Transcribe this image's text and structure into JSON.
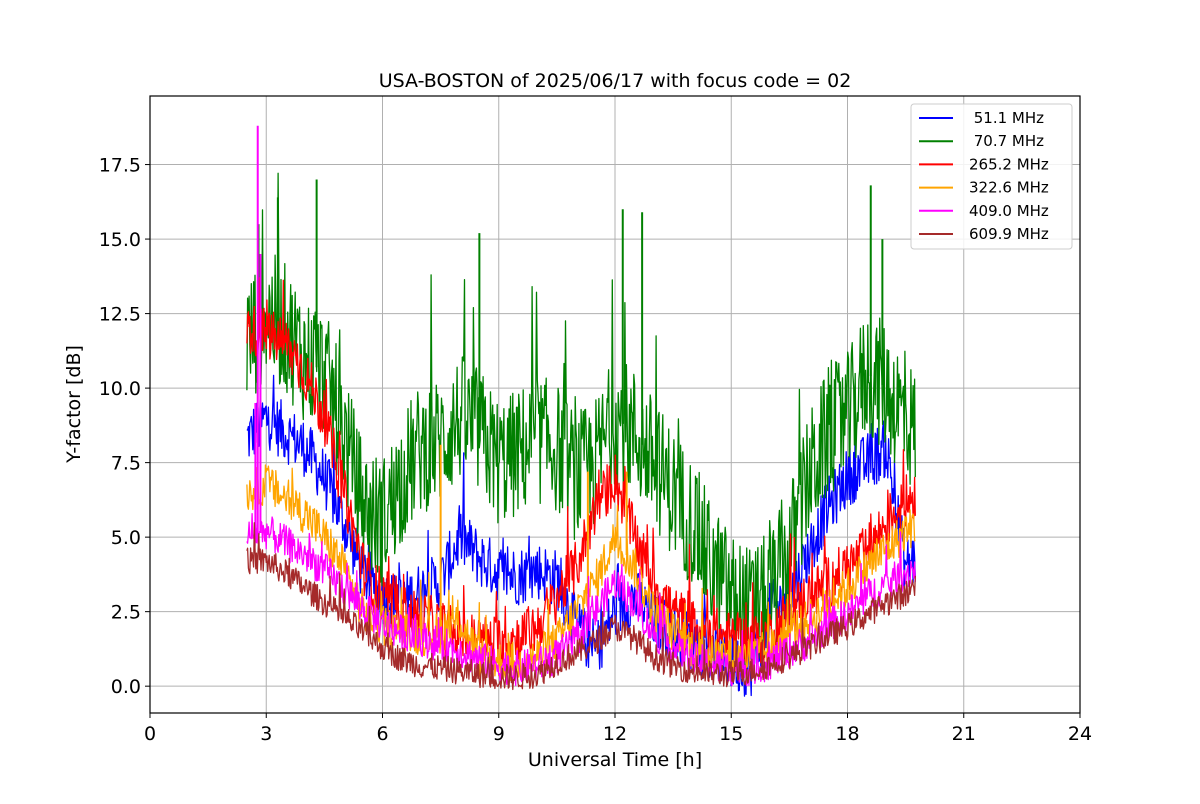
{
  "chart_data": {
    "type": "line",
    "title": "USA-BOSTON of 2025/06/17 with focus code = 02",
    "xlabel": "Universal Time [h]",
    "ylabel": "Y-factor [dB]",
    "xlim": [
      0,
      24
    ],
    "ylim": [
      -0.9,
      19.8
    ],
    "xticks": [
      0,
      3,
      6,
      9,
      12,
      15,
      18,
      21,
      24
    ],
    "xtick_labels": [
      "0",
      "3",
      "6",
      "9",
      "12",
      "15",
      "18",
      "21",
      "24"
    ],
    "yticks": [
      0.0,
      2.5,
      5.0,
      7.5,
      10.0,
      12.5,
      15.0,
      17.5
    ],
    "ytick_labels": [
      "0.0",
      "2.5",
      "5.0",
      "7.5",
      "10.0",
      "12.5",
      "15.0",
      "17.5"
    ],
    "grid": true,
    "legend_position": "top-right",
    "series": [
      {
        "name": " 51.1 MHz",
        "color": "#0000ff",
        "x": [
          2.5,
          3.0,
          3.5,
          4.0,
          4.5,
          5.0,
          5.5,
          6.0,
          6.5,
          7.0,
          7.5,
          8.0,
          8.5,
          9.0,
          9.5,
          10.0,
          10.5,
          11.0,
          11.5,
          12.0,
          12.5,
          13.0,
          13.5,
          14.0,
          14.5,
          15.0,
          15.5,
          16.0,
          16.5,
          17.0,
          17.5,
          18.0,
          18.5,
          19.0,
          19.5,
          19.75
        ],
        "y": [
          8.3,
          9.0,
          8.5,
          8.0,
          7.0,
          5.5,
          3.8,
          3.0,
          2.8,
          3.2,
          3.5,
          5.0,
          4.3,
          3.8,
          3.7,
          3.9,
          3.6,
          2.0,
          1.2,
          2.5,
          3.0,
          2.2,
          1.8,
          1.5,
          1.0,
          0.8,
          0.6,
          2.5,
          3.0,
          4.5,
          6.0,
          7.0,
          7.5,
          8.0,
          4.0,
          4.3
        ],
        "band": 1.0
      },
      {
        "name": " 70.7 MHz",
        "color": "#008000",
        "x": [
          2.5,
          3.0,
          3.5,
          4.0,
          4.5,
          5.0,
          5.5,
          6.0,
          6.5,
          7.0,
          7.5,
          8.0,
          8.5,
          9.0,
          9.5,
          10.0,
          10.5,
          11.0,
          11.5,
          12.0,
          12.5,
          13.0,
          13.5,
          14.0,
          14.5,
          15.0,
          15.5,
          16.0,
          16.5,
          17.0,
          17.5,
          18.0,
          18.5,
          19.0,
          19.5,
          19.75
        ],
        "y": [
          11.5,
          12.5,
          12.0,
          11.0,
          10.5,
          8.5,
          6.0,
          5.5,
          7.0,
          8.0,
          8.2,
          9.0,
          8.5,
          7.5,
          7.8,
          8.3,
          8.0,
          7.0,
          7.5,
          9.0,
          8.5,
          7.5,
          6.5,
          5.5,
          4.0,
          3.0,
          2.5,
          3.0,
          4.5,
          7.0,
          8.5,
          9.0,
          10.5,
          10.0,
          9.0,
          8.5
        ],
        "band": 2.2,
        "peaks": [
          [
            2.8,
            15.5
          ],
          [
            3.3,
            16.4
          ],
          [
            4.3,
            17.0
          ],
          [
            8.5,
            15.2
          ],
          [
            12.2,
            16.0
          ],
          [
            12.7,
            15.9
          ],
          [
            18.6,
            16.8
          ],
          [
            18.9,
            15.0
          ]
        ]
      },
      {
        "name": "265.2 MHz",
        "color": "#ff0000",
        "x": [
          2.5,
          3.0,
          3.5,
          4.0,
          4.5,
          5.0,
          5.5,
          6.0,
          6.5,
          7.0,
          7.5,
          8.0,
          8.5,
          9.0,
          9.5,
          10.0,
          10.5,
          11.0,
          11.5,
          12.0,
          12.5,
          13.0,
          13.5,
          14.0,
          14.5,
          15.0,
          15.5,
          16.0,
          16.5,
          17.0,
          17.5,
          18.0,
          18.5,
          19.0,
          19.5,
          19.75
        ],
        "y": [
          12.0,
          11.8,
          11.5,
          10.5,
          9.0,
          6.5,
          4.0,
          2.8,
          2.5,
          2.3,
          2.0,
          1.7,
          1.5,
          1.5,
          1.6,
          2.0,
          3.0,
          4.0,
          6.0,
          7.0,
          5.0,
          3.5,
          2.5,
          2.0,
          1.8,
          1.6,
          1.5,
          1.7,
          2.5,
          3.0,
          3.5,
          4.0,
          4.5,
          5.5,
          6.2,
          6.5
        ],
        "band": 0.9
      },
      {
        "name": "322.6 MHz",
        "color": "#ffa500",
        "x": [
          2.5,
          3.0,
          3.5,
          4.0,
          4.5,
          5.0,
          5.5,
          6.0,
          6.5,
          7.0,
          7.5,
          8.0,
          8.5,
          9.0,
          9.5,
          10.0,
          10.5,
          11.0,
          11.5,
          12.0,
          12.5,
          13.0,
          13.5,
          14.0,
          14.5,
          15.0,
          15.5,
          16.0,
          16.5,
          17.0,
          17.5,
          18.0,
          18.5,
          19.0,
          19.5,
          19.75
        ],
        "y": [
          6.5,
          6.8,
          6.3,
          5.8,
          5.0,
          4.0,
          2.5,
          2.0,
          1.8,
          1.7,
          1.8,
          2.2,
          1.0,
          0.8,
          0.8,
          1.0,
          1.5,
          2.5,
          3.5,
          5.0,
          4.0,
          2.5,
          1.8,
          1.3,
          1.0,
          1.0,
          1.0,
          1.2,
          1.8,
          2.2,
          2.8,
          3.3,
          4.0,
          4.6,
          5.2,
          5.4
        ],
        "band": 0.7,
        "peaks": [
          [
            7.5,
            8.1
          ],
          [
            11.3,
            7.2
          ],
          [
            12.3,
            7.2
          ]
        ]
      },
      {
        "name": "409.0 MHz",
        "color": "#ff00ff",
        "x": [
          2.5,
          3.0,
          3.5,
          4.0,
          4.5,
          5.0,
          5.5,
          6.0,
          6.5,
          7.0,
          7.5,
          8.0,
          8.5,
          9.0,
          9.5,
          10.0,
          10.5,
          11.0,
          11.5,
          12.0,
          12.5,
          13.0,
          13.5,
          14.0,
          14.5,
          15.0,
          15.5,
          16.0,
          16.5,
          17.0,
          17.5,
          18.0,
          18.5,
          19.0,
          19.5,
          19.75
        ],
        "y": [
          5.0,
          5.2,
          4.8,
          4.4,
          3.9,
          3.3,
          2.6,
          2.1,
          1.8,
          1.6,
          1.4,
          1.2,
          0.9,
          0.7,
          0.6,
          0.7,
          1.0,
          1.5,
          2.5,
          3.5,
          2.8,
          1.8,
          1.3,
          0.9,
          0.7,
          0.6,
          0.6,
          0.8,
          1.2,
          1.5,
          2.0,
          2.4,
          3.0,
          3.4,
          3.8,
          4.0
        ],
        "band": 0.6,
        "peaks": [
          [
            2.78,
            18.8
          ],
          [
            2.85,
            14.5
          ],
          [
            2.72,
            9.5
          ]
        ]
      },
      {
        "name": "609.9 MHz",
        "color": "#a52a2a",
        "x": [
          2.5,
          3.0,
          3.5,
          4.0,
          4.5,
          5.0,
          5.5,
          6.0,
          6.5,
          7.0,
          7.5,
          8.0,
          8.5,
          9.0,
          9.5,
          10.0,
          10.5,
          11.0,
          11.5,
          12.0,
          12.5,
          13.0,
          13.5,
          14.0,
          14.5,
          15.0,
          15.5,
          16.0,
          16.5,
          17.0,
          17.5,
          18.0,
          18.5,
          19.0,
          19.5,
          19.75
        ],
        "y": [
          4.2,
          4.2,
          3.8,
          3.3,
          2.8,
          2.3,
          1.8,
          1.3,
          0.9,
          0.7,
          0.6,
          0.5,
          0.4,
          0.3,
          0.3,
          0.4,
          0.8,
          1.1,
          1.5,
          2.0,
          1.6,
          1.0,
          0.7,
          0.5,
          0.4,
          0.4,
          0.5,
          0.7,
          1.0,
          1.3,
          1.7,
          2.0,
          2.4,
          2.8,
          3.1,
          3.4
        ],
        "band": 0.45
      }
    ]
  }
}
